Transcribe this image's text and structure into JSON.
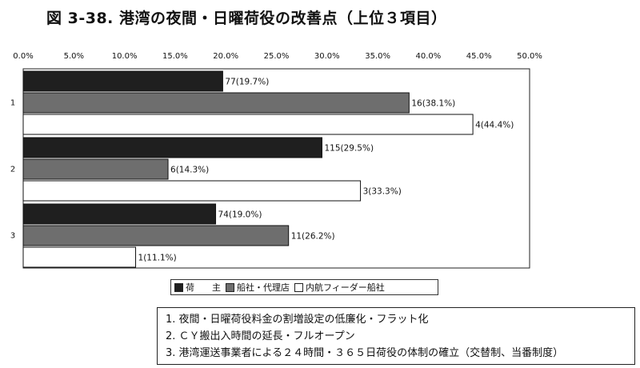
{
  "page_title": "図 3-38. 港湾の夜間・日曜荷役の改善点（上位３項目）",
  "chart_data": {
    "type": "bar",
    "orientation": "horizontal",
    "title": "図 3-38. 港湾の夜間・日曜荷役の改善点（上位３項目）",
    "categories": [
      "1",
      "2",
      "3"
    ],
    "xlim": [
      0,
      50
    ],
    "x_ticks": [
      "0.0%",
      "5.0%",
      "10.0%",
      "15.0%",
      "20.0%",
      "25.0%",
      "30.0%",
      "35.0%",
      "40.0%",
      "45.0%",
      "50.0%"
    ],
    "x_tick_values": [
      0,
      5,
      10,
      15,
      20,
      25,
      30,
      35,
      40,
      45,
      50
    ],
    "legend_position": "bottom",
    "grid": false,
    "series": [
      {
        "name": "荷　　主",
        "color": "#1f1f1f",
        "values": [
          19.7,
          29.5,
          19.0
        ],
        "labels": [
          "77(19.7%)",
          "115(29.5%)",
          "74(19.0%)"
        ]
      },
      {
        "name": "船社・代理店",
        "color": "#6e6e6e",
        "values": [
          38.1,
          14.3,
          26.2
        ],
        "labels": [
          "16(38.1%)",
          "6(14.3%)",
          "11(26.2%)"
        ]
      },
      {
        "name": "内航フィーダー船社",
        "color": "#ffffff",
        "values": [
          44.4,
          33.3,
          11.1
        ],
        "labels": [
          "4(44.4%)",
          "3(33.3%)",
          "1(11.1%)"
        ]
      }
    ]
  },
  "notes": [
    "1.  夜間・日曜荷役料金の割増設定の低廉化・フラット化",
    "2.  ＣＹ搬出入時間の延長・フルオープン",
    "3.  港湾運送事業者による２４時間・３６５日荷役の体制の確立（交替制、当番制度）"
  ]
}
